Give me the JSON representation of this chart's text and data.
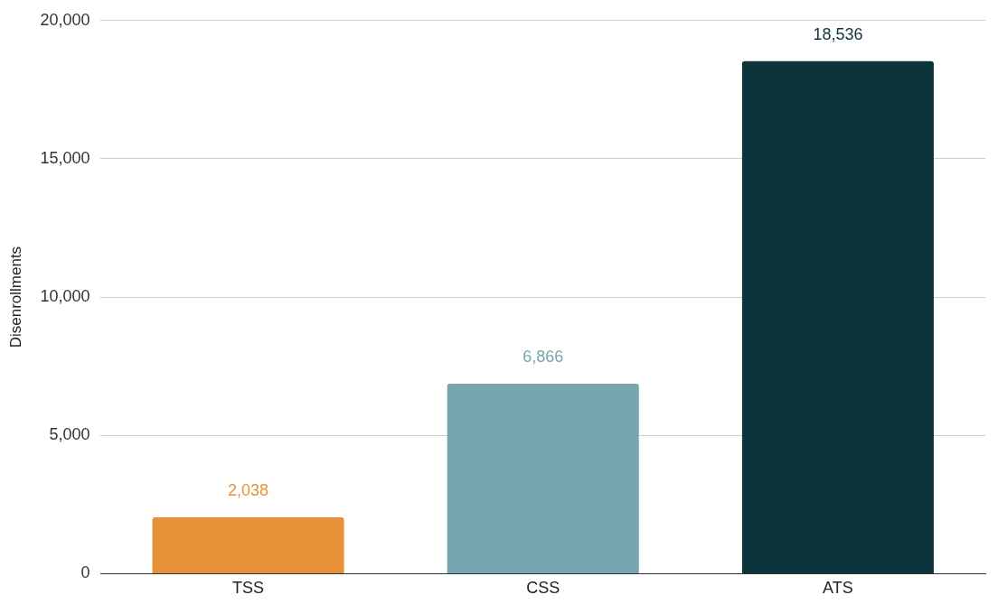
{
  "chart_data": {
    "type": "bar",
    "ylabel": "Disenrollments",
    "categories": [
      "TSS",
      "CSS",
      "ATS"
    ],
    "values": [
      2038,
      6866,
      18536
    ],
    "value_labels": [
      "2,038",
      "6,866",
      "18,536"
    ],
    "colors": [
      "#e69138",
      "#76a5af",
      "#0c343d"
    ],
    "ylim": [
      0,
      20000
    ],
    "yticks": [
      0,
      {
        "value": 5000,
        "label": "5,000"
      },
      {
        "value": 10000,
        "label": "10,000"
      },
      {
        "value": 15000,
        "label": "15,000"
      },
      {
        "value": 20000,
        "label": "20,000"
      }
    ],
    "grid": "y",
    "legend": false
  }
}
